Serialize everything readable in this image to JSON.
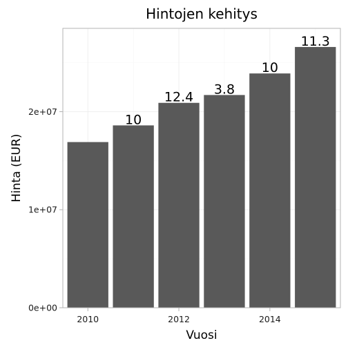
{
  "chart_data": {
    "type": "bar",
    "title": "Hintojen kehitys",
    "xlabel": "Vuosi",
    "ylabel": "Hinta (EUR)",
    "categories": [
      2010,
      2011,
      2012,
      2013,
      2014,
      2015
    ],
    "values": [
      16900000,
      18600000,
      20900000,
      21700000,
      23900000,
      26600000
    ],
    "data_labels": [
      "",
      "10",
      "12.4",
      "3.8",
      "10",
      "11.3"
    ],
    "x_ticks": [
      2010,
      2012,
      2014
    ],
    "x_tick_labels": [
      "2010",
      "2012",
      "2014"
    ],
    "y_ticks": [
      0,
      10000000,
      20000000
    ],
    "y_tick_labels": [
      "0e+00",
      "1e+07",
      "2e+07"
    ],
    "xlim": [
      2009.45,
      2015.55
    ],
    "ylim": [
      0,
      28500000
    ],
    "grid": true,
    "legend": "none",
    "colors": {
      "bar": "#595959",
      "panel_border": "#b3b3b3",
      "grid_major": "#ebebeb",
      "grid_minor": "#f5f5f5",
      "tick": "#b3b3b3"
    }
  }
}
